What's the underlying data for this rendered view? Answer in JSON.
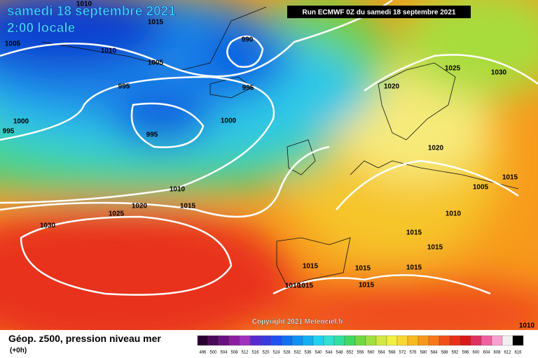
{
  "header": {
    "date": "samedi 18 septembre 2021",
    "time": "2:00 locale",
    "run": "Run ECMWF 0Z du samedi 18 septembre 2021"
  },
  "isobar_labels": [
    1010,
    1015,
    1005,
    1010,
    990,
    1005,
    995,
    995,
    1000,
    995,
    1000,
    995,
    1025,
    1030,
    1020,
    1020,
    1010,
    1020,
    1015,
    1025,
    1005,
    1015,
    1010,
    1030,
    1015,
    1015,
    1015,
    1015,
    1015,
    1010,
    1015,
    1015,
    1010
  ],
  "copyright": "Copyright 2021 Meteociel.fr",
  "legend": {
    "title": "Géop. z500, pression niveau mer",
    "lead": "(+0h)",
    "scale": [
      496,
      500,
      504,
      508,
      512,
      516,
      520,
      524,
      528,
      532,
      536,
      540,
      544,
      548,
      552,
      556,
      560,
      564,
      568,
      572,
      576,
      580,
      584,
      588,
      592,
      596,
      600,
      604,
      608,
      612,
      616
    ]
  }
}
